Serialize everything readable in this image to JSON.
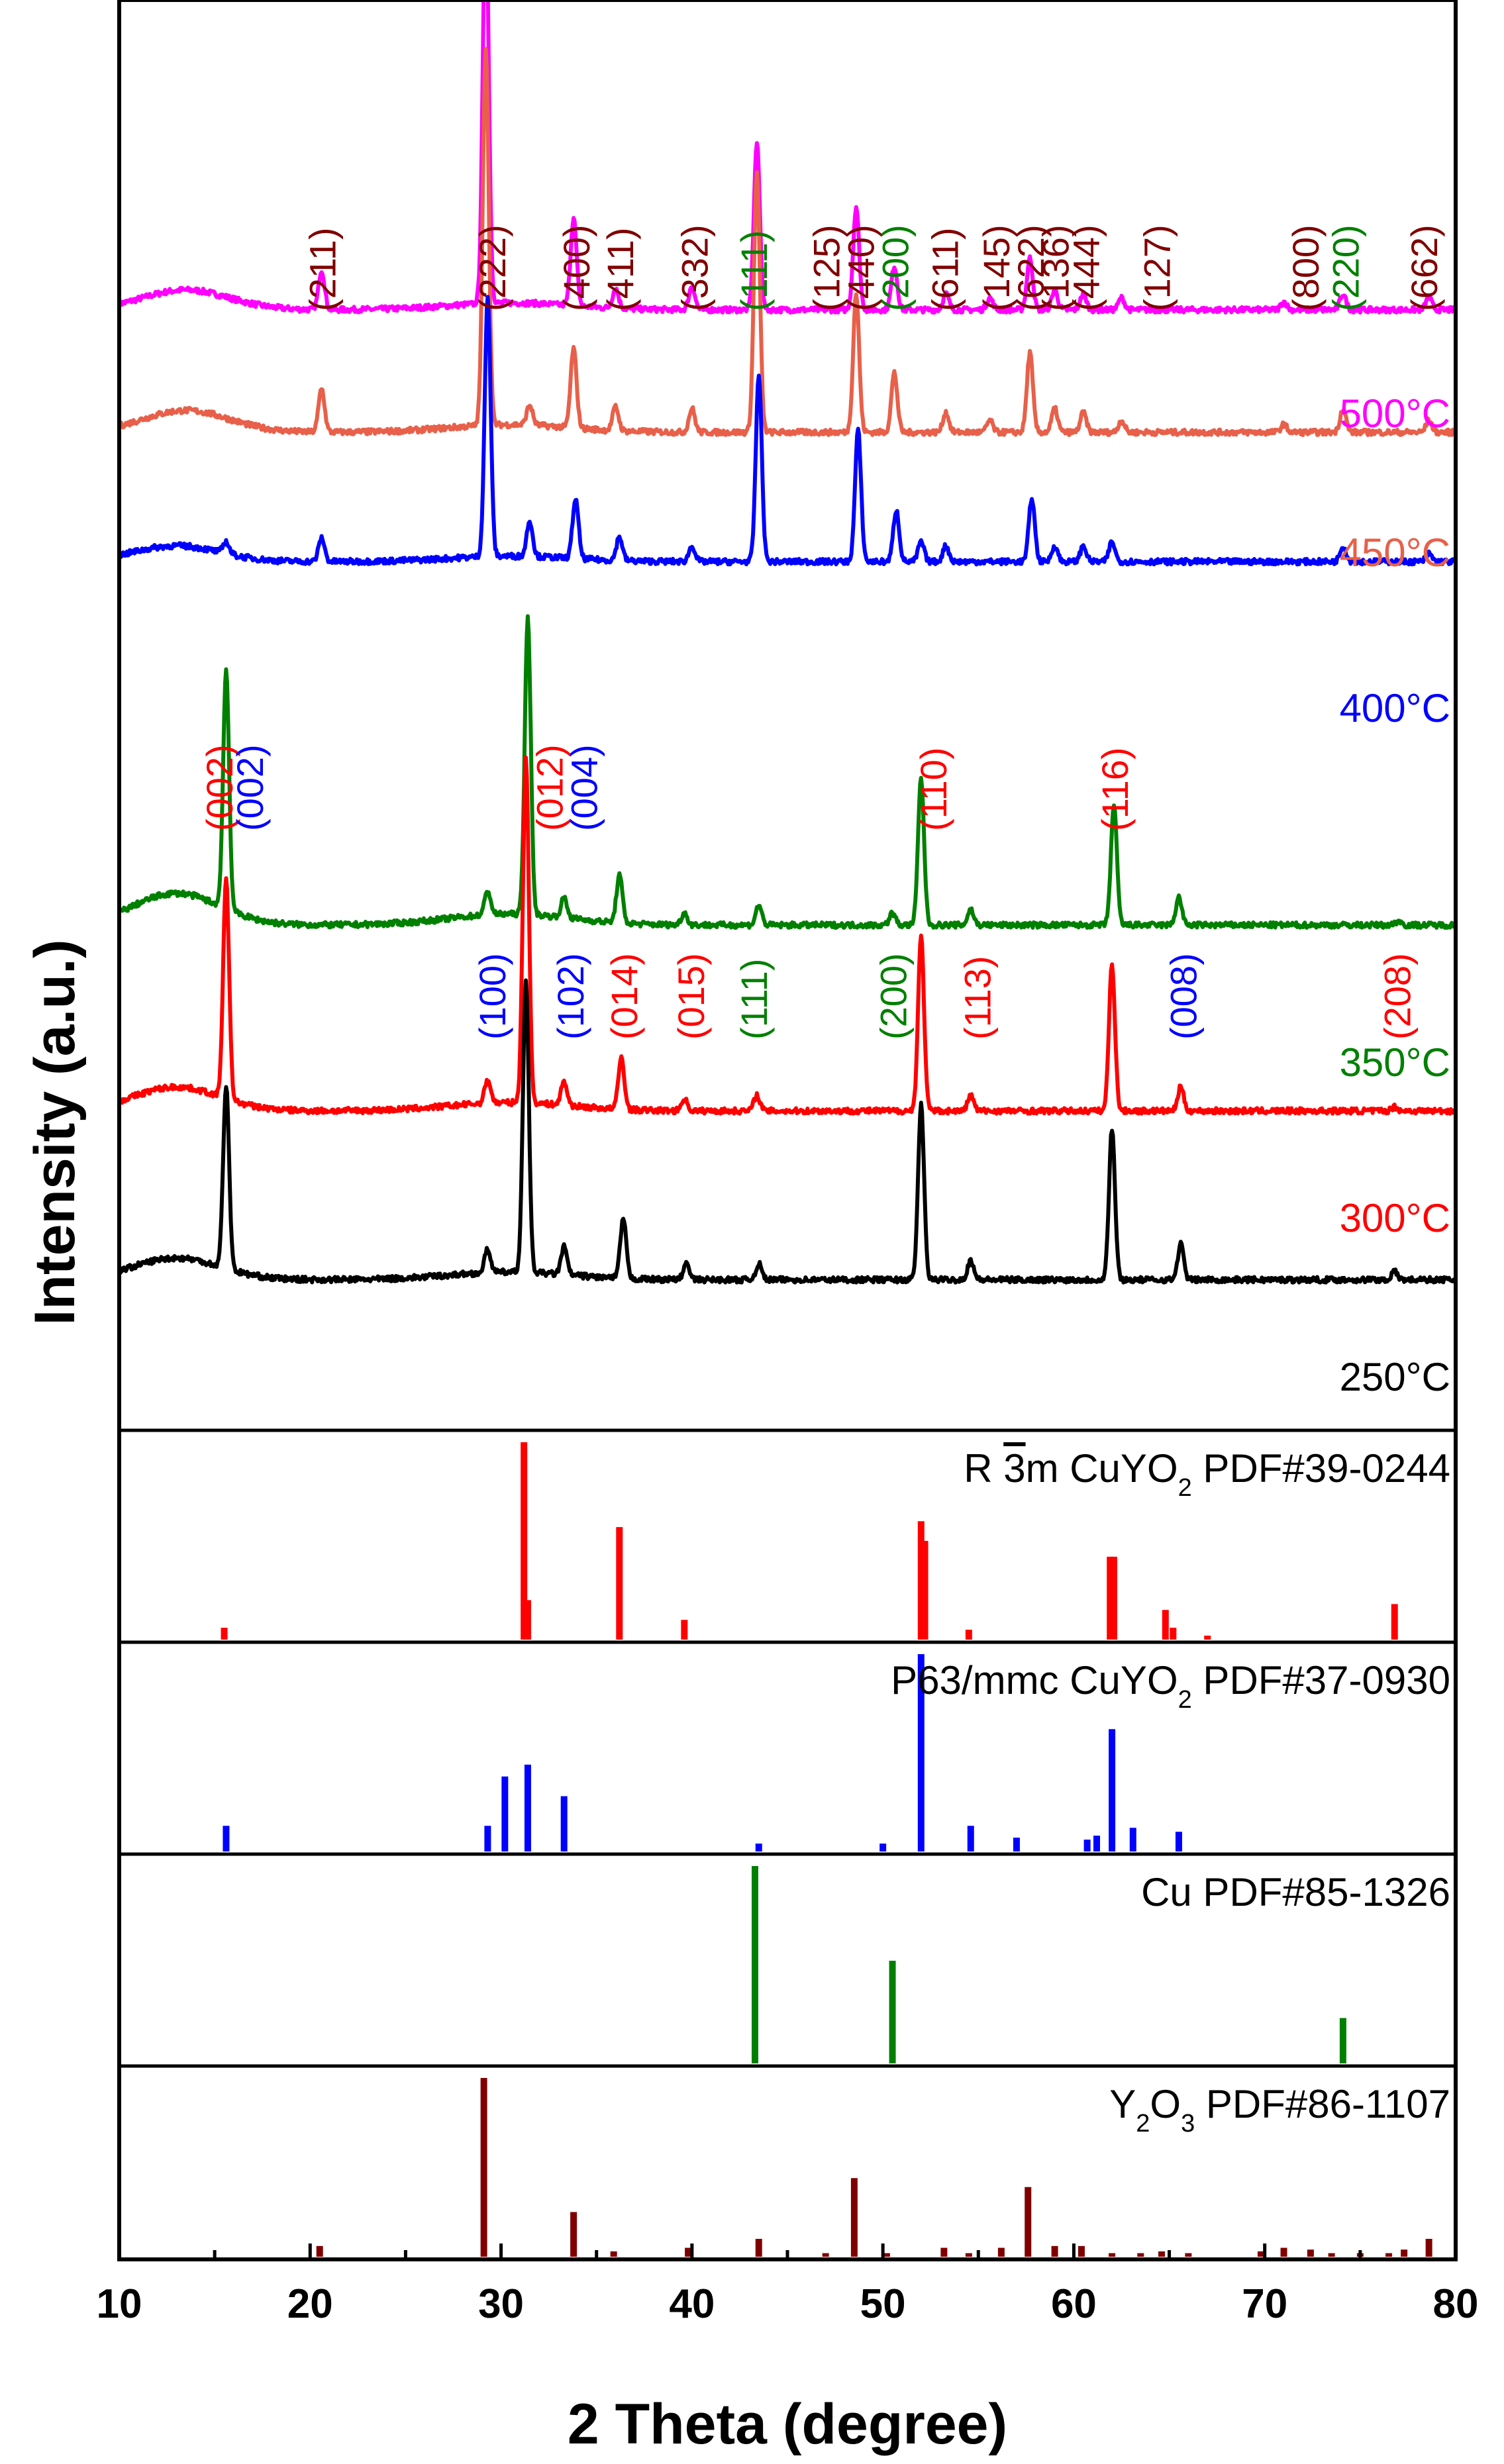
{
  "chart_data": {
    "type": "line",
    "xlabel": "2 Theta (degree)",
    "ylabel": "Intensity (a.u.)",
    "xlim": [
      10,
      80
    ],
    "xticks": [
      10,
      20,
      30,
      40,
      50,
      60,
      70,
      80
    ],
    "colors": {
      "c500": "#ff00ff",
      "c450": "#e8604a",
      "c400": "#0000ff",
      "c350": "#008000",
      "c300": "#ff0000",
      "c250": "#000000",
      "y2o3": "#800000",
      "cu": "#008000",
      "hex": "#0000ff",
      "rh": "#ff0000"
    },
    "series": [
      {
        "name": "500°C",
        "label": "500°C",
        "color": "c500",
        "base": 0.18,
        "hump": 0.5,
        "humpCenter": 13.5,
        "peaks": [
          [
            20.6,
            1.0
          ],
          [
            29.2,
            10.0
          ],
          [
            33.8,
            2.2
          ],
          [
            36.0,
            0.5
          ],
          [
            40.0,
            0.6
          ],
          [
            43.4,
            4.2
          ],
          [
            48.6,
            2.6
          ],
          [
            50.6,
            1.1
          ],
          [
            53.3,
            0.4
          ],
          [
            55.6,
            0.3
          ],
          [
            57.7,
            1.3
          ],
          [
            59.0,
            0.5
          ],
          [
            60.5,
            0.4
          ],
          [
            62.5,
            0.3
          ],
          [
            71.0,
            0.2
          ],
          [
            74.1,
            0.4
          ],
          [
            78.6,
            0.3
          ]
        ]
      },
      {
        "name": "450°C",
        "label": "450°C",
        "color": "c450",
        "base": 0.18,
        "hump": 0.55,
        "humpCenter": 13.5,
        "peaks": [
          [
            20.6,
            1.1
          ],
          [
            29.2,
            9.5
          ],
          [
            31.5,
            0.5
          ],
          [
            33.8,
            2.0
          ],
          [
            36.0,
            0.6
          ],
          [
            40.0,
            0.6
          ],
          [
            43.4,
            6.5
          ],
          [
            48.6,
            3.5
          ],
          [
            50.6,
            1.5
          ],
          [
            53.3,
            0.5
          ],
          [
            55.6,
            0.3
          ],
          [
            57.7,
            2.0
          ],
          [
            59.0,
            0.6
          ],
          [
            60.5,
            0.5
          ],
          [
            62.5,
            0.3
          ],
          [
            71.0,
            0.2
          ],
          [
            74.1,
            0.6
          ],
          [
            78.6,
            0.3
          ]
        ]
      },
      {
        "name": "400°C",
        "label": "400°C",
        "color": "c400",
        "base": 0.15,
        "hump": 0.4,
        "humpCenter": 13.0,
        "peaks": [
          [
            15.6,
            0.3
          ],
          [
            20.6,
            0.6
          ],
          [
            29.3,
            6.5
          ],
          [
            31.5,
            0.9
          ],
          [
            33.9,
            1.5
          ],
          [
            36.2,
            0.6
          ],
          [
            40.0,
            0.4
          ],
          [
            43.5,
            4.7
          ],
          [
            48.7,
            3.3
          ],
          [
            50.7,
            1.3
          ],
          [
            52.0,
            0.5
          ],
          [
            53.3,
            0.4
          ],
          [
            57.8,
            1.6
          ],
          [
            59.0,
            0.4
          ],
          [
            60.5,
            0.4
          ],
          [
            62.0,
            0.5
          ],
          [
            74.1,
            0.4
          ],
          [
            78.6,
            0.2
          ]
        ]
      },
      {
        "name": "350°C",
        "label": "350°C",
        "color": "c350",
        "base": 0.25,
        "hump": 0.8,
        "humpCenter": 13.0,
        "peaks": [
          [
            15.6,
            6.0
          ],
          [
            29.3,
            0.6
          ],
          [
            31.4,
            7.5
          ],
          [
            33.3,
            0.5
          ],
          [
            36.2,
            1.2
          ],
          [
            39.6,
            0.3
          ],
          [
            43.5,
            0.5
          ],
          [
            50.5,
            0.3
          ],
          [
            52.0,
            3.7
          ],
          [
            54.6,
            0.4
          ],
          [
            62.1,
            3.0
          ],
          [
            65.5,
            0.7
          ],
          [
            77.0,
            0.1
          ]
        ]
      },
      {
        "name": "300°C",
        "label": "300°C",
        "color": "c300",
        "base": 0.2,
        "hump": 0.6,
        "humpCenter": 13.0,
        "peaks": [
          [
            15.6,
            5.5
          ],
          [
            29.3,
            0.6
          ],
          [
            31.3,
            8.7
          ],
          [
            33.3,
            0.6
          ],
          [
            36.3,
            1.3
          ],
          [
            39.6,
            0.3
          ],
          [
            43.4,
            0.4
          ],
          [
            52.0,
            4.4
          ],
          [
            54.6,
            0.4
          ],
          [
            62.0,
            3.7
          ],
          [
            65.6,
            0.6
          ],
          [
            76.8,
            0.1
          ]
        ]
      },
      {
        "name": "250°C",
        "label": "250°C",
        "color": "c250",
        "base": 0.2,
        "hump": 0.55,
        "humpCenter": 13.0,
        "peaks": [
          [
            15.6,
            4.6
          ],
          [
            29.3,
            0.6
          ],
          [
            31.3,
            7.3
          ],
          [
            33.3,
            0.7
          ],
          [
            36.4,
            1.5
          ],
          [
            39.7,
            0.4
          ],
          [
            43.5,
            0.4
          ],
          [
            52.0,
            4.4
          ],
          [
            54.6,
            0.5
          ],
          [
            62.0,
            3.8
          ],
          [
            65.6,
            0.9
          ],
          [
            76.8,
            0.2
          ]
        ]
      }
    ],
    "annotations_upper": [
      {
        "text": "(211)",
        "x": 20.7,
        "color": "y2o3",
        "top": 1
      },
      {
        "text": "(222)",
        "x": 29.6,
        "color": "y2o3",
        "top": 1
      },
      {
        "text": "(400)",
        "x": 34.0,
        "color": "y2o3",
        "top": 1
      },
      {
        "text": "(411)",
        "x": 36.3,
        "color": "y2o3",
        "top": 1
      },
      {
        "text": "(332)",
        "x": 40.2,
        "color": "y2o3",
        "top": 1
      },
      {
        "text": "(111)",
        "x": 43.3,
        "color": "cu",
        "top": 1
      },
      {
        "text": "(125)",
        "x": 47.1,
        "color": "y2o3",
        "top": 1
      },
      {
        "text": "(440)",
        "x": 48.9,
        "color": "y2o3",
        "top": 1
      },
      {
        "text": "(200)",
        "x": 50.7,
        "color": "cu",
        "top": 1
      },
      {
        "text": "(611)",
        "x": 53.3,
        "color": "y2o3",
        "top": 1
      },
      {
        "text": "(145)",
        "x": 56.0,
        "color": "y2o3",
        "top": 1
      },
      {
        "text": "(622)",
        "x": 57.8,
        "color": "y2o3",
        "top": 1
      },
      {
        "text": "(136)",
        "x": 59.1,
        "color": "y2o3",
        "top": 1
      },
      {
        "text": "(444)",
        "x": 60.7,
        "color": "y2o3",
        "top": 1
      },
      {
        "text": "(127)",
        "x": 64.4,
        "color": "y2o3",
        "top": 1
      },
      {
        "text": "(800)",
        "x": 72.2,
        "color": "y2o3",
        "top": 1
      },
      {
        "text": "(220)",
        "x": 74.3,
        "color": "cu",
        "top": 1
      },
      {
        "text": "(662)",
        "x": 78.4,
        "color": "y2o3",
        "top": 1
      }
    ],
    "annotations_lower": [
      {
        "text": "(002)",
        "x": 15.3,
        "color": "rh",
        "top": 1
      },
      {
        "text": "(002)",
        "x": 16.9,
        "color": "hex",
        "top": 1
      },
      {
        "text": "(012)",
        "x": 32.6,
        "color": "rh",
        "top": 1
      },
      {
        "text": "(004)",
        "x": 34.4,
        "color": "hex",
        "top": 1
      },
      {
        "text": "(100)",
        "x": 29.6,
        "color": "hex",
        "top": 0
      },
      {
        "text": "(102)",
        "x": 33.7,
        "color": "hex",
        "top": 0
      },
      {
        "text": "(014)",
        "x": 36.5,
        "color": "rh",
        "top": 0
      },
      {
        "text": "(015)",
        "x": 40.0,
        "color": "rh",
        "top": 0
      },
      {
        "text": "(111)",
        "x": 43.3,
        "color": "cu",
        "top": 0
      },
      {
        "text": "(200)",
        "x": 50.6,
        "color": "cu",
        "top": 0
      },
      {
        "text": "(110)",
        "x": 52.7,
        "color": "rh",
        "top": 1
      },
      {
        "text": "(113)",
        "x": 55.0,
        "color": "rh",
        "top": 0
      },
      {
        "text": "(116)",
        "x": 62.2,
        "color": "rh",
        "top": 1
      },
      {
        "text": "(008)",
        "x": 65.8,
        "color": "hex",
        "top": 0
      },
      {
        "text": "(208)",
        "x": 77.0,
        "color": "rh",
        "top": 0
      }
    ],
    "references": [
      {
        "name": "R3m CuYO2 PDF#39-0244",
        "label_prefix": "R ",
        "label_bar": "3",
        "label_mid": "m CuYO",
        "label_sub": "2",
        "label_rest": " PDF#39-0244",
        "color": "rh",
        "lines": [
          [
            15.5,
            0.06
          ],
          [
            31.2,
            1.0
          ],
          [
            31.4,
            0.2
          ],
          [
            36.2,
            0.57
          ],
          [
            39.6,
            0.1
          ],
          [
            52.0,
            0.6
          ],
          [
            52.2,
            0.5
          ],
          [
            54.5,
            0.05
          ],
          [
            61.9,
            0.42
          ],
          [
            62.1,
            0.42
          ],
          [
            64.8,
            0.15
          ],
          [
            65.2,
            0.06
          ],
          [
            67.0,
            0.02
          ],
          [
            76.8,
            0.18
          ]
        ]
      },
      {
        "name": "P63/mmc CuYO2 PDF#37-0930",
        "label_prefix": "P63/mmc CuYO",
        "label_sub": "2",
        "label_rest": " PDF#37-0930",
        "color": "hex",
        "lines": [
          [
            15.6,
            0.13
          ],
          [
            29.3,
            0.13
          ],
          [
            30.2,
            0.38
          ],
          [
            31.4,
            0.44
          ],
          [
            33.3,
            0.28
          ],
          [
            43.5,
            0.04
          ],
          [
            50.0,
            0.04
          ],
          [
            52.0,
            1.0
          ],
          [
            54.6,
            0.13
          ],
          [
            57.0,
            0.07
          ],
          [
            60.7,
            0.06
          ],
          [
            61.2,
            0.08
          ],
          [
            62.0,
            0.62
          ],
          [
            63.1,
            0.12
          ],
          [
            65.5,
            0.1
          ]
        ]
      },
      {
        "name": "Cu PDF#85-1326",
        "label_prefix": "Cu PDF#85-1326",
        "label_sub": "",
        "label_rest": "",
        "color": "cu",
        "lines": [
          [
            43.3,
            1.0
          ],
          [
            50.5,
            0.52
          ],
          [
            74.1,
            0.23
          ]
        ]
      },
      {
        "name": "Y2O3 PDF#86-1107",
        "label_prefix": "Y",
        "label_sub": "2",
        "label_mid2": "O",
        "label_sub2": "3",
        "label_rest": " PDF#86-1107",
        "color": "y2o3",
        "lines": [
          [
            20.5,
            0.06
          ],
          [
            29.1,
            1.0
          ],
          [
            33.8,
            0.25
          ],
          [
            35.9,
            0.03
          ],
          [
            39.8,
            0.05
          ],
          [
            43.5,
            0.1
          ],
          [
            47.0,
            0.02
          ],
          [
            48.5,
            0.44
          ],
          [
            50.2,
            0.02
          ],
          [
            53.2,
            0.05
          ],
          [
            54.5,
            0.02
          ],
          [
            56.2,
            0.05
          ],
          [
            57.6,
            0.39
          ],
          [
            59.0,
            0.06
          ],
          [
            60.4,
            0.06
          ],
          [
            62.0,
            0.02
          ],
          [
            63.5,
            0.02
          ],
          [
            64.6,
            0.03
          ],
          [
            66.0,
            0.02
          ],
          [
            69.8,
            0.03
          ],
          [
            71.0,
            0.05
          ],
          [
            72.4,
            0.04
          ],
          [
            73.5,
            0.02
          ],
          [
            75.0,
            0.02
          ],
          [
            76.5,
            0.02
          ],
          [
            77.3,
            0.04
          ],
          [
            78.6,
            0.1
          ]
        ]
      }
    ]
  }
}
